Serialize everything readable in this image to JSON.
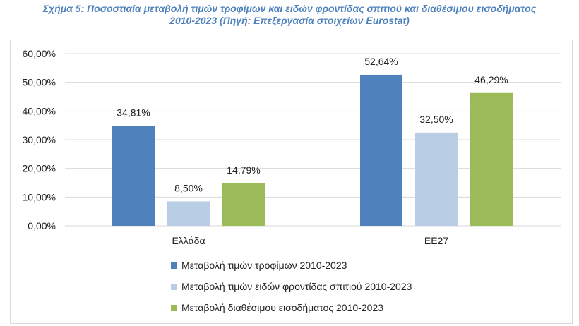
{
  "figure": {
    "title_line1": "Σχήμα 5: Ποσοστιαία μεταβολή τιμών τροφίμων και ειδών φροντίδας σπιτιού και διαθέσιμου εισοδήματος",
    "title_line2": "2010-2023 (Πηγή: Επεξεργασία στοιχείων Eurostat)"
  },
  "chart_data": {
    "type": "bar",
    "title": "Σχήμα 5: Ποσοστιαία μεταβολή τιμών τροφίμων και ειδών φροντίδας σπιτιού και διαθέσιμου εισοδήματος 2010-2023 (Πηγή: Επεξεργασία στοιχείων Eurostat)",
    "categories": [
      "Ελλάδα",
      "ΕΕ27"
    ],
    "series": [
      {
        "name": "Μεταβολή τιμών τροφίμων 2010-2023",
        "color": "#4f81bd",
        "values": [
          34.81,
          52.64
        ],
        "labels": [
          "34,81%",
          "52,64%"
        ]
      },
      {
        "name": "Μεταβολή τιμών ειδών φροντίδας σπιτιού 2010-2023",
        "color": "#b9cde5",
        "values": [
          8.5,
          32.5
        ],
        "labels": [
          "8,50%",
          "32,50%"
        ]
      },
      {
        "name": "Μεταβολή διαθέσιμου εισοδήματος 2010-2023",
        "color": "#9bbb59",
        "values": [
          14.79,
          46.29
        ],
        "labels": [
          "14,79%",
          "46,29%"
        ]
      }
    ],
    "yticks": [
      0,
      10,
      20,
      30,
      40,
      50,
      60
    ],
    "ytick_labels": [
      "0,00%",
      "10,00%",
      "20,00%",
      "30,00%",
      "40,00%",
      "50,00%",
      "60,00%"
    ],
    "ylim": [
      0,
      60
    ],
    "xlabel": "",
    "ylabel": "",
    "grid": true,
    "gridline_color": "#d9d9d9",
    "legend_position": "bottom"
  }
}
